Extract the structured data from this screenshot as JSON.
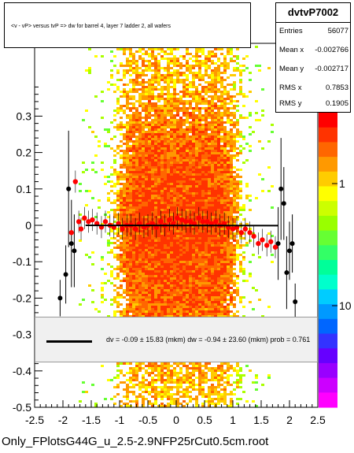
{
  "title": "<v - vP>       versus  tvP =>  dw for barrel 4, layer 7 ladder 2, all wafers",
  "stats": {
    "name": "dvtvP7002",
    "rows": [
      {
        "key": "Entries",
        "value": "56077"
      },
      {
        "key": "Mean x",
        "value": "-0.002766"
      },
      {
        "key": "Mean y",
        "value": "-0.002717"
      },
      {
        "key": "RMS x",
        "value": "0.7853"
      },
      {
        "key": "RMS y",
        "value": "0.1905"
      }
    ]
  },
  "fit_text": "dv =   -0.09 ± 15.83 (mkm) dw =   -0.94 ± 23.60 (mkm) prob = 0.761",
  "footer": "Only_FPlotsG44G_u_2.5-2.9NFP25rCut0.5cm.root",
  "colors": {
    "profile_red": "#ff0000",
    "points_black": "#000000",
    "fit_line": "#000000"
  },
  "chart_data": {
    "type": "heatmap",
    "xlim": [
      -2.5,
      2.5
    ],
    "ylim": [
      -0.5,
      0.5
    ],
    "x_ticks": [
      -2.5,
      -2,
      -1.5,
      -1,
      -0.5,
      0,
      0.5,
      1,
      1.5,
      2,
      2.5
    ],
    "y_ticks": [
      -0.5,
      -0.4,
      -0.3,
      -0.2,
      -0.1,
      0,
      0.1,
      0.2,
      0.3
    ],
    "x_tick_labels": [
      "-2.5",
      "-2",
      "-1.5",
      "-1",
      "-0.5",
      "0",
      "0.5",
      "1",
      "1.5",
      "2",
      "2.5"
    ],
    "y_tick_labels": [
      "-0.5",
      "-0.4",
      "-0.3",
      "-0.2",
      "-0.1",
      "0",
      "0.1",
      "0.2",
      "0.3"
    ],
    "z_scale": "log",
    "z_tick_labels": [
      "10",
      "1",
      "10"
    ],
    "z_tick_values": [
      10,
      1,
      10
    ],
    "fit_line": {
      "x": [
        -1.6,
        1.8
      ],
      "y": [
        -0.0001,
        -0.0009
      ]
    },
    "profile_black": {
      "x": [
        -2.05,
        -1.95,
        -1.9,
        -1.85,
        -1.8,
        1.8,
        1.85,
        1.9,
        1.95,
        2.0,
        2.05,
        2.1
      ],
      "y": [
        -0.2,
        -0.135,
        0.1,
        -0.05,
        -0.07,
        -0.05,
        0.1,
        0.06,
        -0.13,
        -0.07,
        -0.05,
        -0.21
      ],
      "err": [
        0.05,
        0.08,
        0.16,
        0.12,
        0.1,
        0.1,
        0.14,
        0.1,
        0.1,
        0.08,
        0.08,
        0.05
      ]
    },
    "profile_red": {
      "x": [
        -1.85,
        -1.78,
        -1.72,
        -1.68,
        -1.62,
        -1.55,
        -1.48,
        -1.4,
        -1.32,
        -1.25,
        -1.17,
        -1.1,
        -1.02,
        -0.95,
        -0.87,
        -0.8,
        -0.72,
        -0.65,
        -0.57,
        -0.5,
        -0.42,
        -0.35,
        -0.27,
        -0.2,
        -0.12,
        -0.05,
        0.02,
        0.1,
        0.17,
        0.25,
        0.32,
        0.4,
        0.47,
        0.55,
        0.62,
        0.7,
        0.77,
        0.85,
        0.92,
        1.0,
        1.07,
        1.15,
        1.22,
        1.3,
        1.37,
        1.45,
        1.52,
        1.6,
        1.67,
        1.75
      ],
      "y": [
        -0.02,
        0.12,
        0.01,
        -0.01,
        0.02,
        0.01,
        0.015,
        0.005,
        -0.005,
        0.01,
        0.0,
        -0.005,
        0.005,
        -0.01,
        0.0,
        0.0,
        -0.01,
        0.005,
        -0.005,
        0.0,
        0.005,
        -0.005,
        0.01,
        0.0,
        0.015,
        0.005,
        0.02,
        0.015,
        0.01,
        0.01,
        0.005,
        0.02,
        0.01,
        0.01,
        0.005,
        0.01,
        0.0,
        0.005,
        -0.005,
        -0.01,
        -0.005,
        -0.02,
        -0.01,
        -0.02,
        -0.03,
        -0.05,
        -0.04,
        -0.055,
        -0.045,
        -0.06
      ]
    }
  }
}
